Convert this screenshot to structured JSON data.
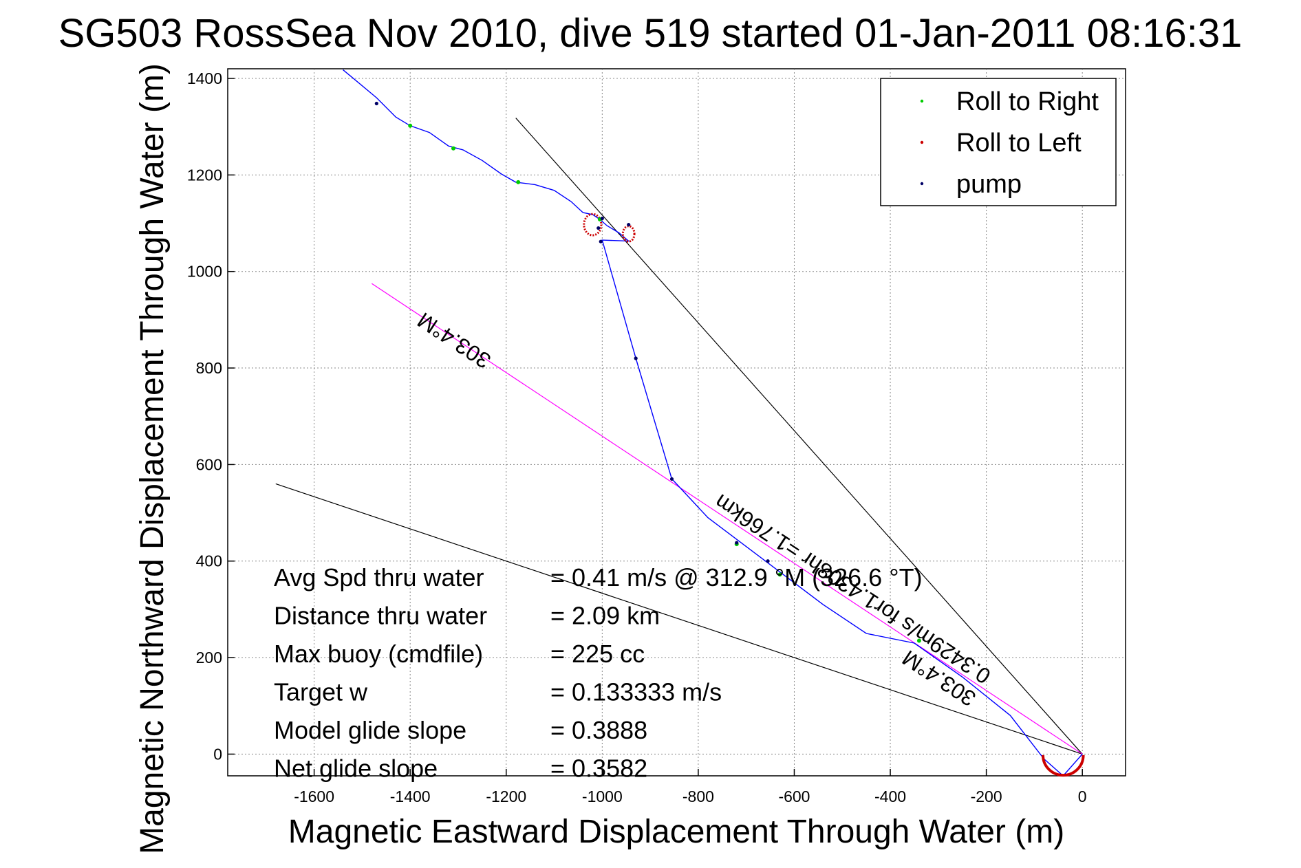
{
  "chart_data": {
    "type": "line",
    "title": "SG503 RossSea Nov 2010, dive 519 started 01-Jan-2011 08:16:31",
    "xlabel": "Magnetic Eastward Displacement Through Water (m)",
    "ylabel": "Magnetic Northward Displacement Through Water (m)",
    "xlim": [
      -1780,
      90
    ],
    "ylim": [
      -45,
      1420
    ],
    "x_ticks": [
      -1600,
      -1400,
      -1200,
      -1000,
      -800,
      -600,
      -400,
      -200,
      0
    ],
    "y_ticks": [
      0,
      200,
      400,
      600,
      800,
      1000,
      1200,
      1400
    ],
    "grid": true,
    "legend_position": "top-right",
    "legend": [
      {
        "label": "Roll to Right",
        "color": "#00cc00"
      },
      {
        "label": "Roll to Left",
        "color": "#cc0000"
      },
      {
        "label": "pump",
        "color": "#000066"
      }
    ],
    "track": {
      "color": "#0000ff",
      "points": [
        [
          -1540,
          1418
        ],
        [
          -1470,
          1360
        ],
        [
          -1430,
          1320
        ],
        [
          -1400,
          1302
        ],
        [
          -1360,
          1288
        ],
        [
          -1320,
          1260
        ],
        [
          -1290,
          1252
        ],
        [
          -1250,
          1230
        ],
        [
          -1210,
          1202
        ],
        [
          -1180,
          1185
        ],
        [
          -1140,
          1180
        ],
        [
          -1100,
          1168
        ],
        [
          -1065,
          1145
        ],
        [
          -1040,
          1122
        ],
        [
          -1020,
          1118
        ],
        [
          -1005,
          1108
        ],
        [
          -990,
          1095
        ],
        [
          -965,
          1080
        ],
        [
          -945,
          1063
        ],
        [
          -1000,
          1065
        ],
        [
          -930,
          820
        ],
        [
          -855,
          570
        ],
        [
          -850,
          565
        ],
        [
          -780,
          490
        ],
        [
          -700,
          430
        ],
        [
          -620,
          370
        ],
        [
          -540,
          310
        ],
        [
          -450,
          250
        ],
        [
          -350,
          230
        ],
        [
          -250,
          160
        ],
        [
          -150,
          80
        ],
        [
          -80,
          -10
        ],
        [
          -40,
          -45
        ],
        [
          0,
          0
        ]
      ]
    },
    "roll_left_loops": [
      {
        "cx": -1020,
        "cy": 1097,
        "rx": 18,
        "ry": 22
      },
      {
        "cx": -945,
        "cy": 1078,
        "rx": 12,
        "ry": 16
      }
    ],
    "roll_left_arc": {
      "cx": -40,
      "cy": -2,
      "r": 42
    },
    "roll_right_points": [
      [
        -1400,
        1302
      ],
      [
        -1310,
        1255
      ],
      [
        -1175,
        1185
      ],
      [
        -1005,
        1108
      ],
      [
        -720,
        435
      ],
      [
        -630,
        372
      ],
      [
        -340,
        235
      ]
    ],
    "pump_points": [
      [
        -1470,
        1348
      ],
      [
        -1000,
        1110
      ],
      [
        -1008,
        1090
      ],
      [
        -1003,
        1062
      ],
      [
        -945,
        1097
      ],
      [
        -930,
        820
      ],
      [
        -855,
        570
      ],
      [
        -720,
        438
      ],
      [
        -655,
        400
      ]
    ],
    "heading_line": {
      "color": "#ff00ff",
      "from": [
        -1480,
        975
      ],
      "to": [
        0,
        0
      ]
    },
    "envelope_lines": [
      {
        "color": "#000000",
        "from": [
          -1180,
          1318
        ],
        "to": [
          0,
          0
        ]
      },
      {
        "color": "#000000",
        "from": [
          -1680,
          560
        ],
        "to": [
          0,
          0
        ]
      }
    ],
    "annotations": [
      {
        "text": "303.4°M",
        "x": -1300,
        "y": 870,
        "rotate": 213.4
      },
      {
        "text": "0.3429m/s for1.4308hr =1.766km",
        "x": -470,
        "y": 355,
        "rotate": 213.4
      },
      {
        "text": "303.4°M",
        "x": -290,
        "y": 170,
        "rotate": 213.4
      }
    ],
    "stats": [
      {
        "label": "Avg Spd thru water",
        "value": "=  0.41 m/s @ 312.9 °M (326.6 °T)"
      },
      {
        "label": "Distance thru water",
        "value": "=  2.09 km"
      },
      {
        "label": "Max buoy (cmdfile)",
        "value": "= 225 cc"
      },
      {
        "label": "Target w",
        "value": "= 0.133333 m/s"
      },
      {
        "label": "Model glide slope",
        "value": "= 0.3888"
      },
      {
        "label": "Net glide slope",
        "value": "= 0.3582"
      }
    ]
  }
}
